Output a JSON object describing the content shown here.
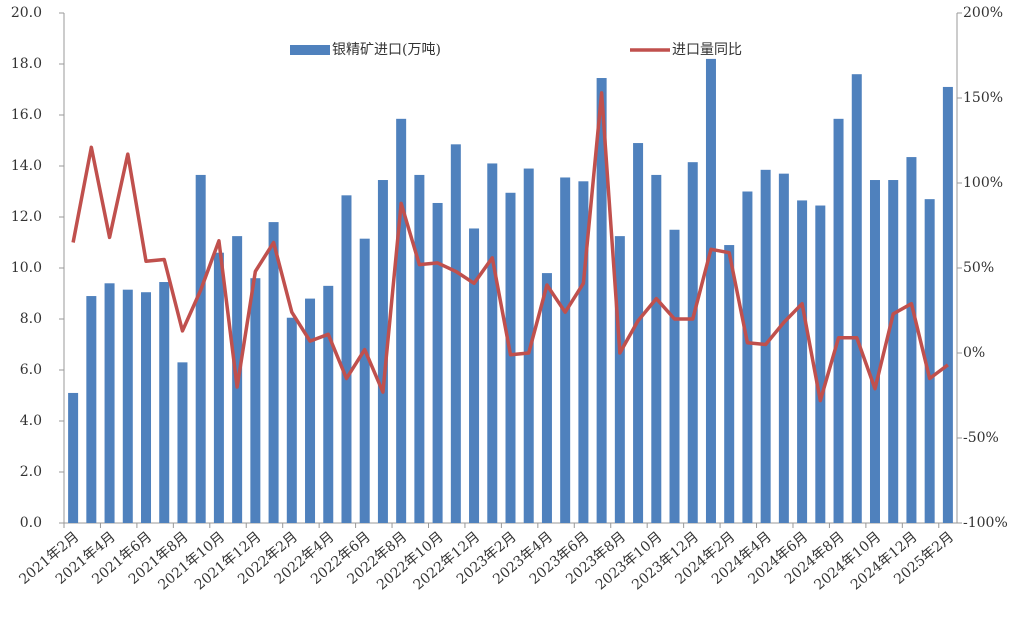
{
  "chart_data": {
    "type": "bar_line",
    "categories": [
      "2021年2月",
      null,
      "2021年4月",
      null,
      "2021年6月",
      null,
      "2021年8月",
      null,
      "2021年10月",
      null,
      "2021年12月",
      null,
      "2022年2月",
      null,
      "2022年4月",
      null,
      "2022年6月",
      null,
      "2022年8月",
      null,
      "2022年10月",
      null,
      "2022年12月",
      null,
      "2023年2月",
      null,
      "2023年4月",
      null,
      "2023年6月",
      null,
      "2023年8月",
      null,
      "2023年10月",
      null,
      "2023年12月",
      null,
      "2024年2月",
      null,
      "2024年4月",
      null,
      "2024年6月",
      null,
      "2024年8月",
      null,
      "2024年10月",
      null,
      "2024年12月",
      null,
      "2025年2月"
    ],
    "series": [
      {
        "name": "银精矿进口(万吨)",
        "color": "#4f81bd",
        "type": "bar",
        "values": [
          5.1,
          8.9,
          9.4,
          9.15,
          9.05,
          9.45,
          6.3,
          13.65,
          10.6,
          11.25,
          9.6,
          11.8,
          8.05,
          8.8,
          9.3,
          12.85,
          11.15,
          13.45,
          15.85,
          13.65,
          12.55,
          14.85,
          11.55,
          14.1,
          12.95,
          13.9,
          9.8,
          13.55,
          13.4,
          17.45,
          11.25,
          14.9,
          13.65,
          11.5,
          14.15,
          18.2,
          10.9,
          13.0,
          13.85,
          13.7,
          12.65,
          12.45,
          15.85,
          17.6,
          13.45,
          13.45,
          14.35,
          12.7,
          17.1
        ]
      },
      {
        "name": "进口量同比",
        "color": "#c0504d",
        "type": "line",
        "axis": "y2",
        "values": [
          65,
          121,
          68,
          117,
          54,
          55,
          13,
          37,
          66,
          -20,
          48,
          65,
          24,
          7,
          11,
          -15,
          2,
          -23,
          88,
          52,
          53,
          48,
          41,
          56,
          -1,
          0,
          40,
          24,
          41,
          153,
          0,
          19,
          32,
          20,
          20,
          61,
          59,
          6,
          5,
          18,
          29,
          -28,
          9,
          9,
          -21,
          23,
          29,
          -15,
          -7
        ]
      }
    ],
    "ylim": [
      0,
      20
    ],
    "yticks": [
      {
        "value": 0,
        "label": "0.0"
      },
      {
        "value": 2,
        "label": "2.0"
      },
      {
        "value": 4,
        "label": "4.0"
      },
      {
        "value": 6,
        "label": "6.0"
      },
      {
        "value": 8,
        "label": "8.0"
      },
      {
        "value": 10,
        "label": "10.0"
      },
      {
        "value": 12,
        "label": "12.0"
      },
      {
        "value": 14,
        "label": "14.0"
      },
      {
        "value": 16,
        "label": "16.0"
      },
      {
        "value": 18,
        "label": "18.0"
      },
      {
        "value": 20,
        "label": "20.0"
      }
    ],
    "y2lim": [
      -100,
      200
    ],
    "y2ticks": [
      {
        "value": -100,
        "label": "-100%"
      },
      {
        "value": -50,
        "label": "-50%"
      },
      {
        "value": 0,
        "label": "0%"
      },
      {
        "value": 50,
        "label": "50%"
      },
      {
        "value": 100,
        "label": "100%"
      },
      {
        "value": 150,
        "label": "150%"
      },
      {
        "value": 200,
        "label": "200%"
      }
    ],
    "legend": "top"
  }
}
